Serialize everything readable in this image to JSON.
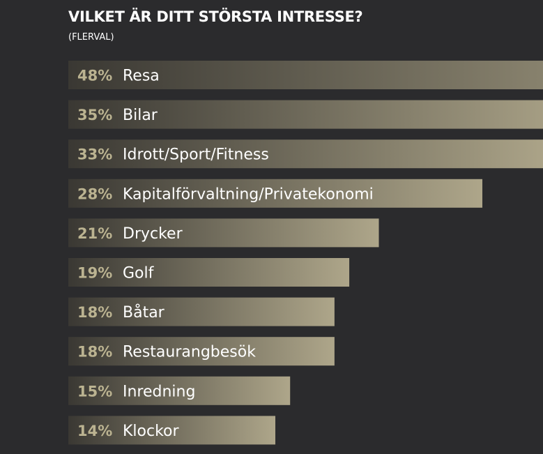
{
  "header": {
    "title": "VILKET ÄR DITT STÖRSTA INTRESSE?",
    "subtitle": "(FLERVAL)"
  },
  "colors": {
    "background": "#2b2b2d",
    "bar_start": "#3a3833",
    "bar_end": "#aea68a",
    "percent_text": "#bbb391",
    "label_text": "#ffffff"
  },
  "chart_data": {
    "type": "bar",
    "orientation": "horizontal",
    "title": "VILKET ÄR DITT STÖRSTA INTRESSE?",
    "subtitle": "(FLERVAL)",
    "categories": [
      "Resa",
      "Bilar",
      "Idrott/Sport/Fitness",
      "Kapitalförvaltning/Privatekonomi",
      "Drycker",
      "Golf",
      "Båtar",
      "Restaurangbesök",
      "Inredning",
      "Klockor"
    ],
    "values": [
      48,
      35,
      33,
      28,
      21,
      19,
      18,
      18,
      15,
      14
    ],
    "value_labels": [
      "48%",
      "35%",
      "33%",
      "28%",
      "21%",
      "19%",
      "18%",
      "18%",
      "15%",
      "14%"
    ],
    "unit": "%",
    "xlim": [
      0,
      32
    ],
    "grid": false,
    "legend": "none"
  }
}
